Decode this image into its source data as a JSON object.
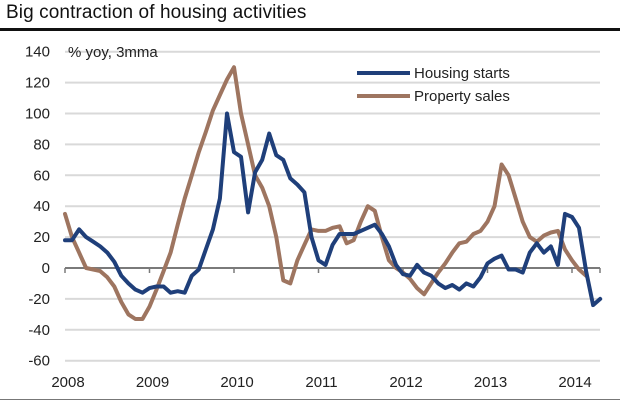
{
  "chart_data": {
    "type": "line",
    "title": "Big contraction of housing activities",
    "ylabel": "% yoy, 3mma",
    "xlabel": "",
    "ylim": [
      -60,
      140
    ],
    "yticks": [
      140,
      120,
      100,
      80,
      60,
      40,
      20,
      0,
      -20,
      -40,
      -60
    ],
    "xlim_months": [
      0,
      76
    ],
    "xticks": [
      {
        "label": "2008",
        "month": 0
      },
      {
        "label": "2009",
        "month": 12
      },
      {
        "label": "2010",
        "month": 24
      },
      {
        "label": "2011",
        "month": 36
      },
      {
        "label": "2012",
        "month": 48
      },
      {
        "label": "2013",
        "month": 60
      },
      {
        "label": "2014",
        "month": 72
      }
    ],
    "grid": true,
    "legend_position": "top-right",
    "series": [
      {
        "name": "Housing starts",
        "color": "#1f3f7a",
        "values": [
          18,
          18,
          25,
          20,
          17,
          14,
          10,
          4,
          -5,
          -10,
          -14,
          -16,
          -13,
          -12,
          -12,
          -16,
          -15,
          -16,
          -5,
          -1,
          12,
          25,
          45,
          100,
          75,
          72,
          36,
          62,
          70,
          87,
          73,
          70,
          58,
          54,
          49,
          20,
          5,
          2,
          15,
          22,
          22,
          22,
          24,
          26,
          28,
          22,
          14,
          2,
          -4,
          -5,
          2,
          -3,
          -5,
          -10,
          -13,
          -11,
          -14,
          -10,
          -12,
          -6,
          3,
          6,
          8,
          -1,
          -1,
          -3,
          10,
          16,
          10,
          14,
          2,
          35,
          33,
          26,
          -2,
          -24,
          -20
        ]
      },
      {
        "name": "Property sales",
        "color": "#9e7560",
        "values": [
          35,
          20,
          10,
          0,
          -1,
          -2,
          -6,
          -12,
          -22,
          -30,
          -33,
          -33,
          -25,
          -14,
          -2,
          10,
          28,
          45,
          60,
          75,
          88,
          102,
          112,
          122,
          130,
          100,
          80,
          60,
          52,
          40,
          20,
          -8,
          -10,
          5,
          15,
          25,
          24,
          24,
          26,
          27,
          16,
          18,
          30,
          40,
          37,
          20,
          5,
          0,
          -3,
          -7,
          -13,
          -17,
          -10,
          -3,
          3,
          10,
          16,
          17,
          22,
          24,
          30,
          40,
          67,
          60,
          45,
          30,
          20,
          17,
          21,
          23,
          24,
          12,
          5,
          -1,
          -5
        ]
      }
    ]
  }
}
